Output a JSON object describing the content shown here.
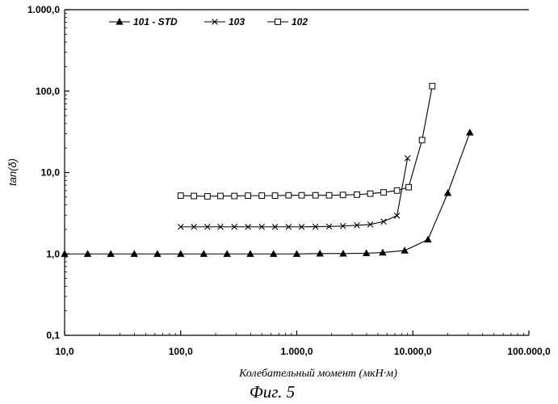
{
  "chart_data": {
    "type": "line",
    "xscale": "log",
    "yscale": "log",
    "xlim": [
      10,
      100000
    ],
    "ylim": [
      0.1,
      1000
    ],
    "x_ticks": [
      {
        "value": 10,
        "label": "10,0"
      },
      {
        "value": 100,
        "label": "100,0"
      },
      {
        "value": 1000,
        "label": "1.000,0"
      },
      {
        "value": 10000,
        "label": "10.000,0"
      },
      {
        "value": 100000,
        "label": "100.000,0"
      }
    ],
    "y_ticks": [
      {
        "value": 0.1,
        "label": "0,1"
      },
      {
        "value": 1,
        "label": "1,0"
      },
      {
        "value": 10,
        "label": "10,0"
      },
      {
        "value": 100,
        "label": "100,0"
      },
      {
        "value": 1000,
        "label": "1.000,0"
      }
    ],
    "xlabel": "Колебательный момент (мкН·м)",
    "ylabel": "tan(δ)",
    "caption": "Фиг. 5",
    "legend": "top-left",
    "series": [
      {
        "name": "101 - STD",
        "marker": "triangle",
        "x": [
          10,
          15.8,
          25,
          39.8,
          63,
          100,
          158,
          251,
          398,
          631,
          1000,
          1585,
          2512,
          3981,
          5500,
          8500,
          13500,
          20000,
          31000
        ],
        "y": [
          1.0,
          1.0,
          1.0,
          1.0,
          1.0,
          1.0,
          1.0,
          1.0,
          1.0,
          1.0,
          1.0,
          1.01,
          1.01,
          1.02,
          1.04,
          1.1,
          1.5,
          5.6,
          31
        ]
      },
      {
        "name": "103",
        "marker": "x",
        "x": [
          100,
          130,
          170,
          220,
          290,
          380,
          500,
          650,
          850,
          1100,
          1450,
          1900,
          2500,
          3300,
          4300,
          5600,
          7300,
          9000
        ],
        "y": [
          2.15,
          2.15,
          2.15,
          2.15,
          2.15,
          2.15,
          2.15,
          2.15,
          2.15,
          2.15,
          2.16,
          2.17,
          2.2,
          2.25,
          2.3,
          2.5,
          2.95,
          15
        ]
      },
      {
        "name": "102",
        "marker": "square",
        "x": [
          100,
          130,
          170,
          220,
          290,
          380,
          500,
          650,
          850,
          1100,
          1450,
          1900,
          2500,
          3300,
          4300,
          5600,
          7300,
          9200,
          12000,
          14700
        ],
        "y": [
          5.2,
          5.15,
          5.1,
          5.15,
          5.15,
          5.2,
          5.2,
          5.2,
          5.25,
          5.25,
          5.25,
          5.25,
          5.3,
          5.35,
          5.5,
          5.7,
          6.0,
          6.6,
          25,
          115
        ]
      }
    ]
  }
}
